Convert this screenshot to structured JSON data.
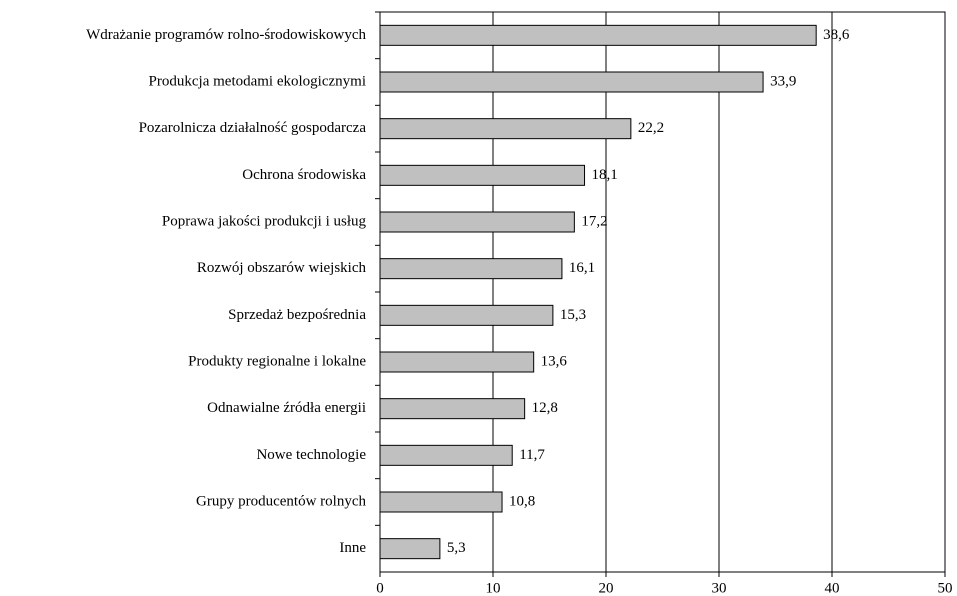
{
  "chart_data": {
    "type": "bar",
    "orientation": "horizontal",
    "categories": [
      "Wdrażanie programów rolno-środowiskowych",
      "Produkcja metodami ekologicznymi",
      "Pozarolnicza działalność gospodarcza",
      "Ochrona środowiska",
      "Poprawa jakości produkcji i usług",
      "Rozwój obszarów wiejskich",
      "Sprzedaż bezpośrednia",
      "Produkty regionalne i lokalne",
      "Odnawialne źródła energii",
      "Nowe technologie",
      "Grupy producentów rolnych",
      "Inne"
    ],
    "values": [
      38.6,
      33.9,
      22.2,
      18.1,
      17.2,
      16.1,
      15.3,
      13.6,
      12.8,
      11.7,
      10.8,
      5.3
    ],
    "value_labels": [
      "38,6",
      "33,9",
      "22,2",
      "18,1",
      "17,2",
      "16,1",
      "15,3",
      "13,6",
      "12,8",
      "11,7",
      "10,8",
      "5,3"
    ],
    "color": "#c0c0c0",
    "xlim": [
      0,
      50
    ],
    "xticks": [
      0,
      10,
      20,
      30,
      40,
      50
    ],
    "grid": true
  }
}
